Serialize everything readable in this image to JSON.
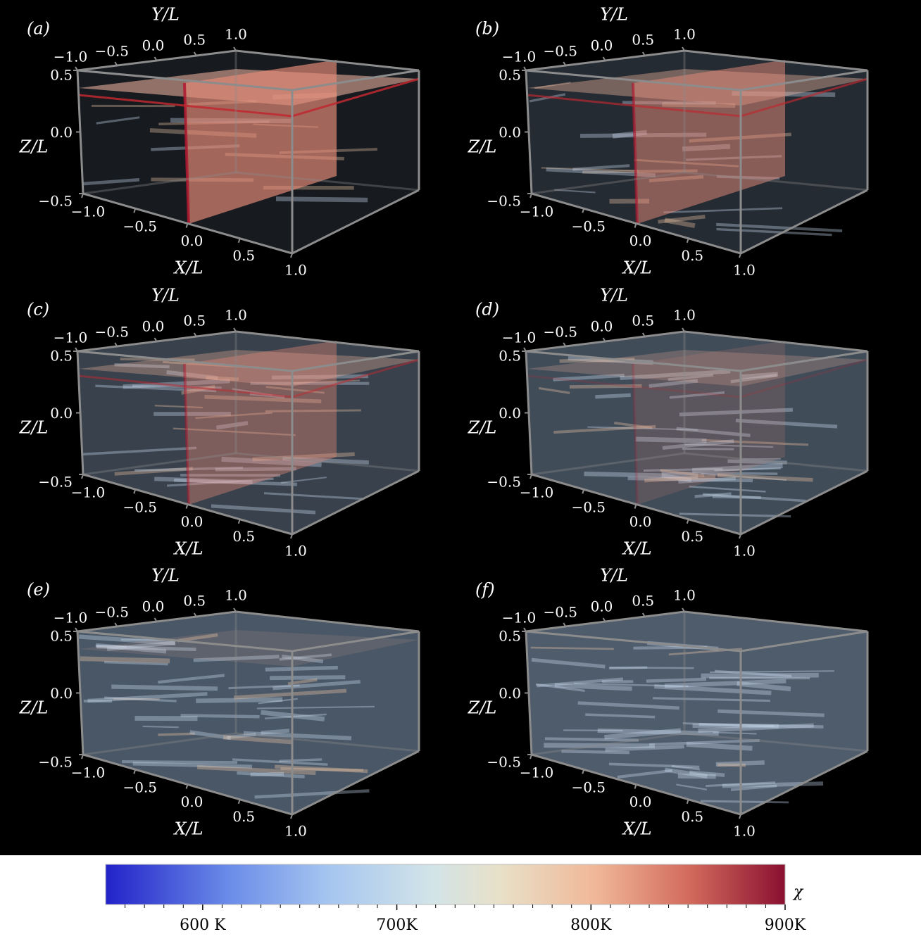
{
  "chart_data": {
    "type": "volume",
    "panels": [
      {
        "label": "(a)",
        "xlabel": "X/L",
        "ylabel": "Y/L",
        "zlabel": "Z/L",
        "xticks": [
          {
            "value": -1,
            "label": "−1.0"
          },
          {
            "value": -0.5,
            "label": "−0.5"
          },
          {
            "value": 0,
            "label": "0.0"
          },
          {
            "value": 0.5,
            "label": "0.5"
          },
          {
            "value": 1,
            "label": "1.0"
          }
        ],
        "yticks": [
          {
            "value": -1,
            "label": "−1.0"
          },
          {
            "value": -0.5,
            "label": "−0.5"
          },
          {
            "value": 0,
            "label": "0.0"
          },
          {
            "value": 0.5,
            "label": "0.5"
          },
          {
            "value": 1,
            "label": "1.0"
          }
        ],
        "zticks": [
          {
            "value": -0.5,
            "label": "−0.5"
          },
          {
            "value": 0,
            "label": "0.0"
          },
          {
            "value": 0.5,
            "label": "0.5"
          }
        ]
      },
      {
        "label": "(b)",
        "xlabel": "X/L",
        "ylabel": "Y/L",
        "zlabel": "Z/L",
        "xticks": [
          {
            "value": -1,
            "label": "−1.0"
          },
          {
            "value": -0.5,
            "label": "−0.5"
          },
          {
            "value": 0,
            "label": "0.0"
          },
          {
            "value": 0.5,
            "label": "0.5"
          },
          {
            "value": 1,
            "label": "1.0"
          }
        ],
        "yticks": [
          {
            "value": -1,
            "label": "−1.0"
          },
          {
            "value": -0.5,
            "label": "−0.5"
          },
          {
            "value": 0,
            "label": "0.0"
          },
          {
            "value": 0.5,
            "label": "0.5"
          },
          {
            "value": 1,
            "label": "1.0"
          }
        ],
        "zticks": [
          {
            "value": -0.5,
            "label": "−0.5"
          },
          {
            "value": 0,
            "label": "0.0"
          },
          {
            "value": 0.5,
            "label": "0.5"
          }
        ]
      },
      {
        "label": "(c)",
        "xlabel": "X/L",
        "ylabel": "Y/L",
        "zlabel": "Z/L",
        "xticks": [
          {
            "value": -1,
            "label": "−1.0"
          },
          {
            "value": -0.5,
            "label": "−0.5"
          },
          {
            "value": 0,
            "label": "0.0"
          },
          {
            "value": 0.5,
            "label": "0.5"
          },
          {
            "value": 1,
            "label": "1.0"
          }
        ],
        "yticks": [
          {
            "value": -1,
            "label": "−1.0"
          },
          {
            "value": -0.5,
            "label": "−0.5"
          },
          {
            "value": 0,
            "label": "0.0"
          },
          {
            "value": 0.5,
            "label": "0.5"
          },
          {
            "value": 1,
            "label": "1.0"
          }
        ],
        "zticks": [
          {
            "value": -0.5,
            "label": "−0.5"
          },
          {
            "value": 0,
            "label": "0.0"
          },
          {
            "value": 0.5,
            "label": "0.5"
          }
        ]
      },
      {
        "label": "(d)",
        "xlabel": "X/L",
        "ylabel": "Y/L",
        "zlabel": "Z/L",
        "xticks": [
          {
            "value": -1,
            "label": "−1.0"
          },
          {
            "value": -0.5,
            "label": "−0.5"
          },
          {
            "value": 0,
            "label": "0.0"
          },
          {
            "value": 0.5,
            "label": "0.5"
          },
          {
            "value": 1,
            "label": "1.0"
          }
        ],
        "yticks": [
          {
            "value": -1,
            "label": "−1.0"
          },
          {
            "value": -0.5,
            "label": "−0.5"
          },
          {
            "value": 0,
            "label": "0.0"
          },
          {
            "value": 0.5,
            "label": "0.5"
          },
          {
            "value": 1,
            "label": "1.0"
          }
        ],
        "zticks": [
          {
            "value": -0.5,
            "label": "−0.5"
          },
          {
            "value": 0,
            "label": "0.0"
          },
          {
            "value": 0.5,
            "label": "0.5"
          }
        ]
      },
      {
        "label": "(e)",
        "xlabel": "X/L",
        "ylabel": "Y/L",
        "zlabel": "Z/L",
        "xticks": [
          {
            "value": -1,
            "label": "−1.0"
          },
          {
            "value": -0.5,
            "label": "−0.5"
          },
          {
            "value": 0,
            "label": "0.0"
          },
          {
            "value": 0.5,
            "label": "0.5"
          },
          {
            "value": 1,
            "label": "1.0"
          }
        ],
        "yticks": [
          {
            "value": -1,
            "label": "−1.0"
          },
          {
            "value": -0.5,
            "label": "−0.5"
          },
          {
            "value": 0,
            "label": "0.0"
          },
          {
            "value": 0.5,
            "label": "0.5"
          },
          {
            "value": 1,
            "label": "1.0"
          }
        ],
        "zticks": [
          {
            "value": -0.5,
            "label": "−0.5"
          },
          {
            "value": 0,
            "label": "0.0"
          },
          {
            "value": 0.5,
            "label": "0.5"
          }
        ]
      },
      {
        "label": "(f)",
        "xlabel": "X/L",
        "ylabel": "Y/L",
        "zlabel": "Z/L",
        "xticks": [
          {
            "value": -1,
            "label": "−1.0"
          },
          {
            "value": -0.5,
            "label": "−0.5"
          },
          {
            "value": 0,
            "label": "0.0"
          },
          {
            "value": 0.5,
            "label": "0.5"
          },
          {
            "value": 1,
            "label": "1.0"
          }
        ],
        "yticks": [
          {
            "value": -1,
            "label": "−1.0"
          },
          {
            "value": -0.5,
            "label": "−0.5"
          },
          {
            "value": 0,
            "label": "0.0"
          },
          {
            "value": 0.5,
            "label": "0.5"
          },
          {
            "value": 1,
            "label": "1.0"
          }
        ],
        "zticks": [
          {
            "value": -0.5,
            "label": "−0.5"
          },
          {
            "value": 0,
            "label": "0.0"
          },
          {
            "value": 0.5,
            "label": "0.5"
          }
        ]
      }
    ],
    "colorbar": {
      "label": "χ",
      "clim": [
        550,
        900
      ],
      "ticks": [
        {
          "value": 600,
          "label": "600 K"
        },
        {
          "value": 700,
          "label": "700K"
        },
        {
          "value": 800,
          "label": "800K"
        },
        {
          "value": 900,
          "label": "900K"
        }
      ],
      "minor_ticks": [
        560,
        570,
        580,
        590,
        610,
        620,
        630,
        640,
        650,
        660,
        670,
        680,
        690,
        710,
        720,
        730,
        740,
        750,
        760,
        770,
        780,
        790,
        810,
        820,
        830,
        840,
        850,
        860,
        870,
        880,
        890
      ]
    }
  }
}
